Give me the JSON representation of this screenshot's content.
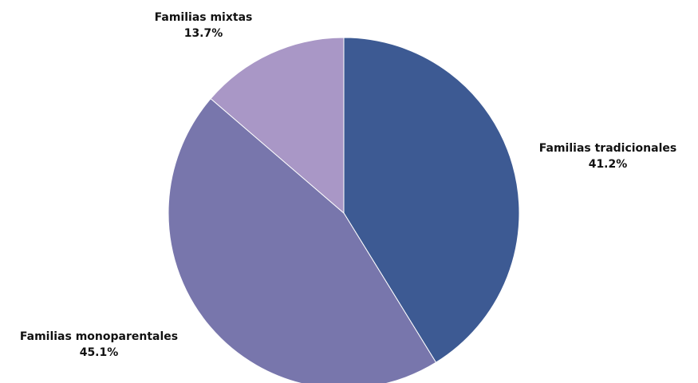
{
  "chart_data": {
    "type": "pie",
    "title": "",
    "slices": [
      {
        "label": "Familias tradicionales",
        "value": 41.2,
        "value_label": "41.2%",
        "color": "#3d5a93"
      },
      {
        "label": "Familias monoparentales",
        "value": 45.1,
        "value_label": "45.1%",
        "color": "#7876ac"
      },
      {
        "label": "Familias mixtas",
        "value": 13.7,
        "value_label": "13.7%",
        "color": "#a997c6"
      }
    ],
    "start_angle": "12 o'clock",
    "direction": "clockwise",
    "legend": "none",
    "data_labels": "outside, label above percentage"
  }
}
